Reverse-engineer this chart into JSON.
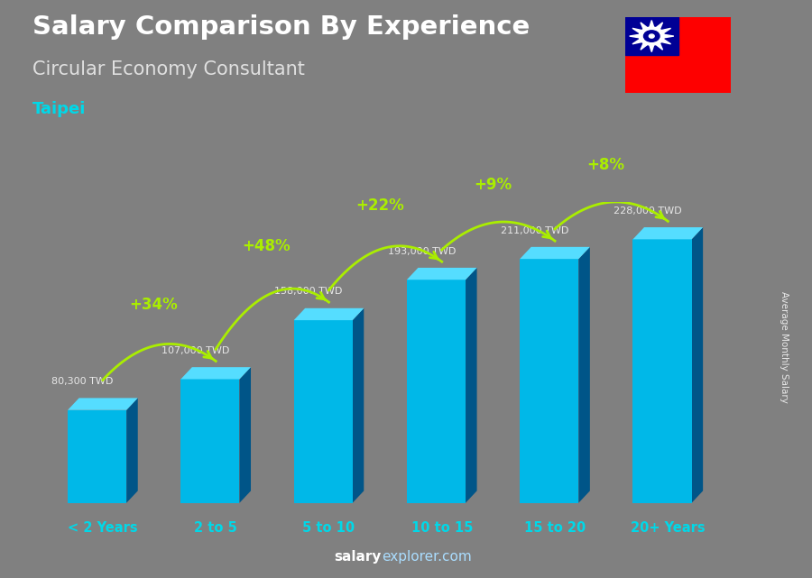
{
  "title": "Salary Comparison By Experience",
  "subtitle": "Circular Economy Consultant",
  "city": "Taipei",
  "ylabel": "Average Monthly Salary",
  "categories": [
    "< 2 Years",
    "2 to 5",
    "5 to 10",
    "10 to 15",
    "15 to 20",
    "20+ Years"
  ],
  "values": [
    80300,
    107000,
    158000,
    193000,
    211000,
    228000
  ],
  "labels": [
    "80,300 TWD",
    "107,000 TWD",
    "158,000 TWD",
    "193,000 TWD",
    "211,000 TWD",
    "228,000 TWD"
  ],
  "pct_changes": [
    null,
    "+34%",
    "+48%",
    "+22%",
    "+9%",
    "+8%"
  ],
  "bg_color": "#808080",
  "title_color": "#ffffff",
  "subtitle_color": "#e0e0e0",
  "city_color": "#00d8e8",
  "label_color": "#e8e8e8",
  "pct_color": "#aaee00",
  "arrow_color": "#aaee00",
  "xtick_color": "#00d8e8",
  "footer_bold_color": "#ffffff",
  "footer_light_color": "#aaddff",
  "bar_front": "#00b8e8",
  "bar_top": "#55ddff",
  "bar_side": "#007aaa",
  "bar_side_right": "#005588",
  "flag_red": "#fe0000",
  "flag_blue": "#000095"
}
